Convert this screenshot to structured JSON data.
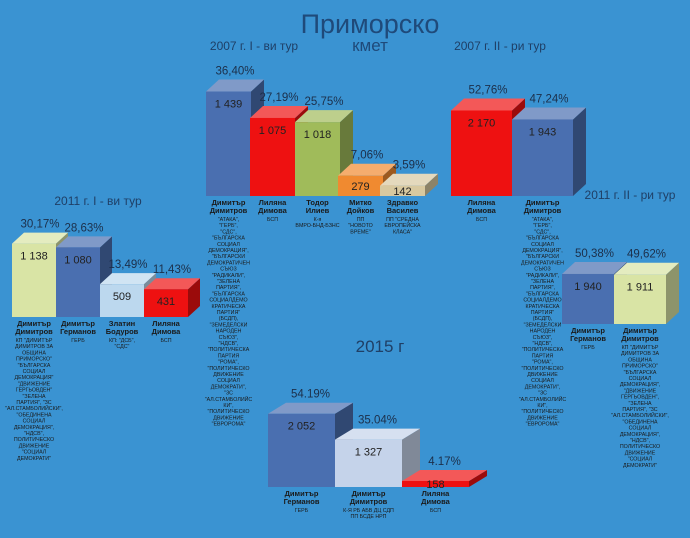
{
  "page": {
    "title": "Приморско",
    "subtitle": "кмет",
    "background": "#3a93d2"
  },
  "chart_data": [
    {
      "type": "bar",
      "title": "2007 г. I - ви тур",
      "series": [
        {
          "candidate": "Димитър Димитров",
          "party": "\"АТАКА\", \"ГЕРБ\", \"СДС\", \"БЪЛГАРСКА СОЦИАЛ ДЕМОКРАЦИЯ\", \"БЪЛГАРСКИ ДЕМОКРАТИЧЕН СЪЮЗ \"РАДИКАЛИ\", \"ЗЕЛЕНА ПАРТИЯ\", \"БЪЛГАРСКА СОЦИАЛДЕМО КРАТИЧЕСКА ПАРТИЯ\" (БСДП), \"ЗЕМЕДЕЛСКИ НАРОДЕН СЪЮЗ\", \"НДСВ\", \"ПОЛИТИЧЕСКА ПАРТИЯ \"РОМА\", \"ПОЛИТИЧЕСКО ДВИЖЕНИЕ СОЦИАЛ ДЕМОКРАТИ\", \"ЗС \"АЛ.СТАМБОЛИЙС КИ\", \"ПОЛИТИЧЕСКО ДВИЖЕНИЕ \"ЕВРОРОМА\"",
          "votes": 1439,
          "votes_label": "1 439",
          "percent": 36.4,
          "percent_label": "36,40%",
          "color": "#4a6fb0"
        },
        {
          "candidate": "Лиляна Димова",
          "party": "БСП",
          "votes": 1075,
          "votes_label": "1 075",
          "percent": 27.19,
          "percent_label": "27,19%",
          "color": "#ee1111"
        },
        {
          "candidate": "Тодор Илиев",
          "party": "К-я ВМРО-БНД-БЗНС",
          "votes": 1018,
          "votes_label": "1 018",
          "percent": 25.75,
          "percent_label": "25,75%",
          "color": "#a0bb5a"
        },
        {
          "candidate": "Митко Дойков",
          "party": "ПП \"НОВОТО ВРЕМЕ\"",
          "votes": 279,
          "votes_label": "279",
          "percent": 7.06,
          "percent_label": "7,06%",
          "color": "#f08a30"
        },
        {
          "candidate": "Здравко Василев",
          "party": "ПП \"СРЕДНА ЕВРОПЕЙСКА КЛАСА\"",
          "votes": 142,
          "votes_label": "142",
          "percent": 3.59,
          "percent_label": "3,59%",
          "color": "#d8c9a0"
        }
      ]
    },
    {
      "type": "bar",
      "title": "2007 г. II - ри тур",
      "title2": "2011 г. II - ри тур",
      "series": [
        {
          "candidate": "Лиляна Димова",
          "party": "БСП",
          "votes": 2170,
          "votes_label": "2 170",
          "percent": 52.76,
          "percent_label": "52,76%",
          "color": "#ee1111"
        },
        {
          "candidate": "Димитър Димитров",
          "party": "\"АТАКА\", \"ГЕРБ\", \"СДС\", \"БЪЛГАРСКА СОЦИАЛ ДЕМОКРАЦИЯ\", \"БЪЛГАРСКИ ДЕМОКРАТИЧЕН СЪЮЗ \"РАДИКАЛИ\", \"ЗЕЛЕНА ПАРТИЯ\", \"БЪЛГАРСКА СОЦИАЛДЕМО КРАТИЧЕСКА ПАРТИЯ\" (БСДП), \"ЗЕМЕДЕЛСКИ НАРОДЕН СЪЮЗ\", \"НДСВ\", \"ПОЛИТИЧЕСКА ПАРТИЯ \"РОМА\", \"ПОЛИТИЧЕСКО ДВИЖЕНИЕ СОЦИАЛ ДЕМОКРАТИ\", \"ЗС \"АЛ.СТАМБОЛИЙС КИ\", \"ПОЛИТИЧЕСКО ДВИЖЕНИЕ \"ЕВРОРОМА\"",
          "votes": 1943,
          "votes_label": "1 943",
          "percent": 47.24,
          "percent_label": "47,24%",
          "color": "#4a6fb0"
        }
      ]
    },
    {
      "type": "bar",
      "title": "2011 г. I - ви тур",
      "series": [
        {
          "candidate": "Димитър Димитров",
          "party": "КП \"ДИМИТЪР ДИМИТРОВ ЗА ОБЩИНА ПРИМОРСКО\" \"БЪЛГАРСКА СОЦИАЛ ДЕМОКРАЦИЯ\" \"ДВИЖЕНИЕ ГЕРГЬОВДЕН\" \"ЗЕЛЕНА ПАРТИЯ\", \"ЗС \"АЛ.СТАМБОЛИЙСКИ\", \"ОБЕДИНЕНА СОЦИАЛ ДЕМОКРАЦИЯ\", \"НДСВ\", ПОЛИТИЧЕСКО ДВИЖЕНИЕ \"СОЦИАЛ ДЕМОКРАТИ\"",
          "votes": 1138,
          "votes_label": "1 138",
          "percent": 30.17,
          "percent_label": "30,17%",
          "color": "#d9e4a5"
        },
        {
          "candidate": "Димитър Германов",
          "party": "ГЕРБ",
          "votes": 1080,
          "votes_label": "1 080",
          "percent": 28.63,
          "percent_label": "28,63%",
          "color": "#4a6fb0"
        },
        {
          "candidate": "Златин Бодуров",
          "party": "КП: \"ДСБ\", \"СДС\"",
          "votes": 509,
          "votes_label": "509",
          "percent": 13.49,
          "percent_label": "13,49%",
          "color": "#bcd8ee"
        },
        {
          "candidate": "Лиляна Димова",
          "party": "БСП",
          "votes": 431,
          "votes_label": "431",
          "percent": 11.43,
          "percent_label": "11,43%",
          "color": "#ee1111"
        }
      ]
    },
    {
      "type": "bar",
      "title": "",
      "series": [
        {
          "candidate": "Димитър Германов",
          "party": "ГЕРБ",
          "votes": 1940,
          "votes_label": "1 940",
          "percent": 50.38,
          "percent_label": "50,38%",
          "color": "#4a6fb0"
        },
        {
          "candidate": "Димитър Димитров",
          "party": "КП \"ДИМИТЪР ДИМИТРОВ ЗА ОБЩИНА ПРИМОРСКО\" \"БЪЛГАРСКА СОЦИАЛ ДЕМОКРАЦИЯ\", \"ДВИЖЕНИЕ ГЕРГЬОВДЕН\", \"ЗЕЛЕНА ПАРТИЯ\", \"ЗС \"АЛ.СТАМБОЛИЙСКИ\", \"ОБЕДИНЕНА СОЦИАЛ ДЕМОКРАЦИЯ\", \"НДСВ\", ПОЛИТИЧЕСКО ДВИЖЕНИЕ \"СОЦИАЛ ДЕМОКРАТИ\"",
          "votes": 1911,
          "votes_label": "1 911",
          "percent": 49.62,
          "percent_label": "49,62%",
          "color": "#d9e4a5"
        }
      ]
    },
    {
      "type": "bar",
      "title": "2015 г",
      "series": [
        {
          "candidate": "Димитър Германов",
          "party": "ГЕРБ",
          "votes": 2052,
          "votes_label": "2 052",
          "percent": 54.19,
          "percent_label": "54.19%",
          "color": "#4a6fb0"
        },
        {
          "candidate": "Димитър Димитров",
          "party": "К-Я РБ АБВ ДЦ СДП ПП БСДЕ НРП",
          "votes": 1327,
          "votes_label": "1 327",
          "percent": 35.04,
          "percent_label": "35.04%",
          "color": "#c5d3ea"
        },
        {
          "candidate": "Лиляна Димова",
          "party": "БСП",
          "votes": 158,
          "votes_label": "158",
          "percent": 4.17,
          "percent_label": "4.17%",
          "color": "#ee1111"
        }
      ]
    }
  ]
}
